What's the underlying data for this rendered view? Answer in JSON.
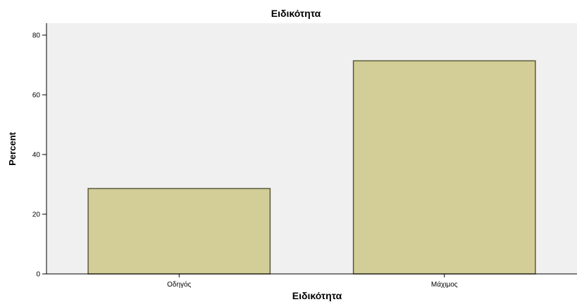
{
  "chart_data": {
    "type": "bar",
    "title": "Ειδικότητα",
    "xlabel": "Ειδικότητα",
    "ylabel": "Percent",
    "categories": [
      "Οδηγός",
      "Μάχιμος"
    ],
    "values": [
      28.6,
      71.4
    ],
    "ylim": [
      0,
      84
    ],
    "yticks": [
      0,
      20,
      40,
      60,
      80
    ],
    "grid": false,
    "legend": "none",
    "colors": {
      "plot_background": "#f0f0f0",
      "bar_fill": "#d3ce97",
      "bar_stroke": "#5a5a3c",
      "axis": "#000000"
    }
  }
}
